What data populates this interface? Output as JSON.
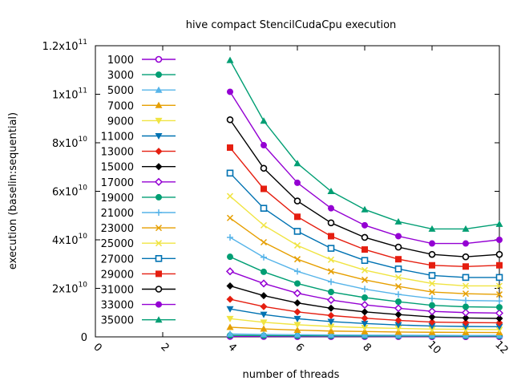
{
  "chart_data": {
    "type": "line",
    "title": "hive compact StencilCudaCpu execution",
    "xlabel": "number of threads",
    "ylabel": "execution (baselin:sequential)",
    "xlim": [
      0,
      12
    ],
    "ylim": [
      0,
      120000000000.0
    ],
    "x_ticks": [
      0,
      2,
      4,
      6,
      8,
      10,
      12
    ],
    "x_tick_labels": [
      "0",
      "2",
      "4",
      "6",
      "8",
      "10",
      "12"
    ],
    "y_ticks": [
      {
        "value": 0,
        "mantissa": "0",
        "exp": ""
      },
      {
        "value": 20000000000.0,
        "mantissa": "2x10",
        "exp": "10"
      },
      {
        "value": 40000000000.0,
        "mantissa": "4x10",
        "exp": "10"
      },
      {
        "value": 60000000000.0,
        "mantissa": "6x10",
        "exp": "10"
      },
      {
        "value": 80000000000.0,
        "mantissa": "8x10",
        "exp": "10"
      },
      {
        "value": 100000000000.0,
        "mantissa": "1x10",
        "exp": "11"
      },
      {
        "value": 120000000000.0,
        "mantissa": "1.2x10",
        "exp": "11"
      }
    ],
    "grid": false,
    "legend_position": "top-left",
    "x": [
      4,
      5,
      6,
      7,
      8,
      9,
      10,
      11,
      12
    ],
    "series": [
      {
        "name": "1000",
        "color": "#9400d3",
        "marker": "circle-open",
        "values": [
          200000000.0,
          170000000.0,
          150000000.0,
          140000000.0,
          130000000.0,
          120000000.0,
          110000000.0,
          110000000.0,
          100000000.0
        ]
      },
      {
        "name": "3000",
        "color": "#009e73",
        "marker": "circle-filled",
        "values": [
          600000000.0,
          500000000.0,
          450000000.0,
          400000000.0,
          370000000.0,
          340000000.0,
          320000000.0,
          310000000.0,
          300000000.0
        ]
      },
      {
        "name": "5000",
        "color": "#56b4e9",
        "marker": "triangle-up",
        "values": [
          1200000000.0,
          1000000000.0,
          900000000.0,
          800000000.0,
          730000000.0,
          670000000.0,
          630000000.0,
          610000000.0,
          600000000.0
        ]
      },
      {
        "name": "7000",
        "color": "#e69f00",
        "marker": "triangle-up",
        "values": [
          4000000000.0,
          3300000000.0,
          2800000000.0,
          2400000000.0,
          2200000000.0,
          2000000000.0,
          1900000000.0,
          1850000000.0,
          1800000000.0
        ]
      },
      {
        "name": "9000",
        "color": "#f0e442",
        "marker": "triangle-down",
        "values": [
          7500000000.0,
          6000000000.0,
          5000000000.0,
          4300000000.0,
          3800000000.0,
          3500000000.0,
          3200000000.0,
          3100000000.0,
          3000000000.0
        ]
      },
      {
        "name": "11000",
        "color": "#0072b2",
        "marker": "triangle-down",
        "values": [
          11500000000.0,
          9200000000.0,
          7500000000.0,
          6300000000.0,
          5500000000.0,
          4900000000.0,
          4500000000.0,
          4300000000.0,
          4200000000.0
        ]
      },
      {
        "name": "13000",
        "color": "#e51e10",
        "marker": "diamond",
        "values": [
          15500000000.0,
          12500000000.0,
          10300000000.0,
          8800000000.0,
          7700000000.0,
          6800000000.0,
          6100000000.0,
          5900000000.0,
          5800000000.0
        ]
      },
      {
        "name": "15000",
        "color": "#000000",
        "marker": "diamond",
        "values": [
          21000000000.0,
          17000000000.0,
          14000000000.0,
          11800000000.0,
          10300000000.0,
          9200000000.0,
          8200000000.0,
          7800000000.0,
          7600000000.0
        ]
      },
      {
        "name": "17000",
        "color": "#9400d3",
        "marker": "diamond-open",
        "values": [
          27000000000.0,
          22000000000.0,
          18000000000.0,
          15200000000.0,
          13200000000.0,
          11800000000.0,
          10500000000.0,
          10000000000.0,
          9800000000.0
        ]
      },
      {
        "name": "19000",
        "color": "#009e73",
        "marker": "circle-filled",
        "values": [
          33000000000.0,
          26800000000.0,
          22000000000.0,
          18500000000.0,
          16200000000.0,
          14500000000.0,
          13000000000.0,
          12400000000.0,
          12200000000.0
        ]
      },
      {
        "name": "21000",
        "color": "#56b4e9",
        "marker": "plus",
        "values": [
          41000000000.0,
          32800000000.0,
          27000000000.0,
          22700000000.0,
          19700000000.0,
          17500000000.0,
          15800000000.0,
          15000000000.0,
          14800000000.0
        ]
      },
      {
        "name": "23000",
        "color": "#e69f00",
        "marker": "cross",
        "values": [
          49000000000.0,
          39000000000.0,
          32000000000.0,
          27000000000.0,
          23500000000.0,
          20800000000.0,
          18500000000.0,
          17800000000.0,
          17500000000.0
        ]
      },
      {
        "name": "25000",
        "color": "#f0e442",
        "marker": "cross",
        "values": [
          58000000000.0,
          46000000000.0,
          37700000000.0,
          31800000000.0,
          27500000000.0,
          24500000000.0,
          22000000000.0,
          21000000000.0,
          21000000000.0
        ]
      },
      {
        "name": "27000",
        "color": "#0072b2",
        "marker": "square-open",
        "values": [
          67500000000.0,
          53000000000.0,
          43500000000.0,
          36500000000.0,
          31500000000.0,
          28000000000.0,
          25300000000.0,
          24500000000.0,
          24500000000.0
        ]
      },
      {
        "name": "29000",
        "color": "#e51e10",
        "marker": "square-filled",
        "values": [
          78000000000.0,
          61000000000.0,
          49500000000.0,
          41500000000.0,
          36000000000.0,
          32000000000.0,
          29500000000.0,
          29000000000.0,
          29500000000.0
        ]
      },
      {
        "name": "31000",
        "color": "#000000",
        "marker": "circle-open",
        "values": [
          89500000000.0,
          69500000000.0,
          56000000000.0,
          47000000000.0,
          41000000000.0,
          37000000000.0,
          34000000000.0,
          33000000000.0,
          34000000000.0
        ]
      },
      {
        "name": "33000",
        "color": "#9400d3",
        "marker": "circle-filled",
        "values": [
          101000000000.0,
          79000000000.0,
          63500000000.0,
          53000000000.0,
          46000000000.0,
          41500000000.0,
          38500000000.0,
          38500000000.0,
          40000000000.0
        ]
      },
      {
        "name": "35000",
        "color": "#009e73",
        "marker": "triangle-up",
        "values": [
          114000000000.0,
          89000000000.0,
          71500000000.0,
          60000000000.0,
          52500000000.0,
          47500000000.0,
          44500000000.0,
          44500000000.0,
          46500000000.0
        ]
      }
    ]
  }
}
